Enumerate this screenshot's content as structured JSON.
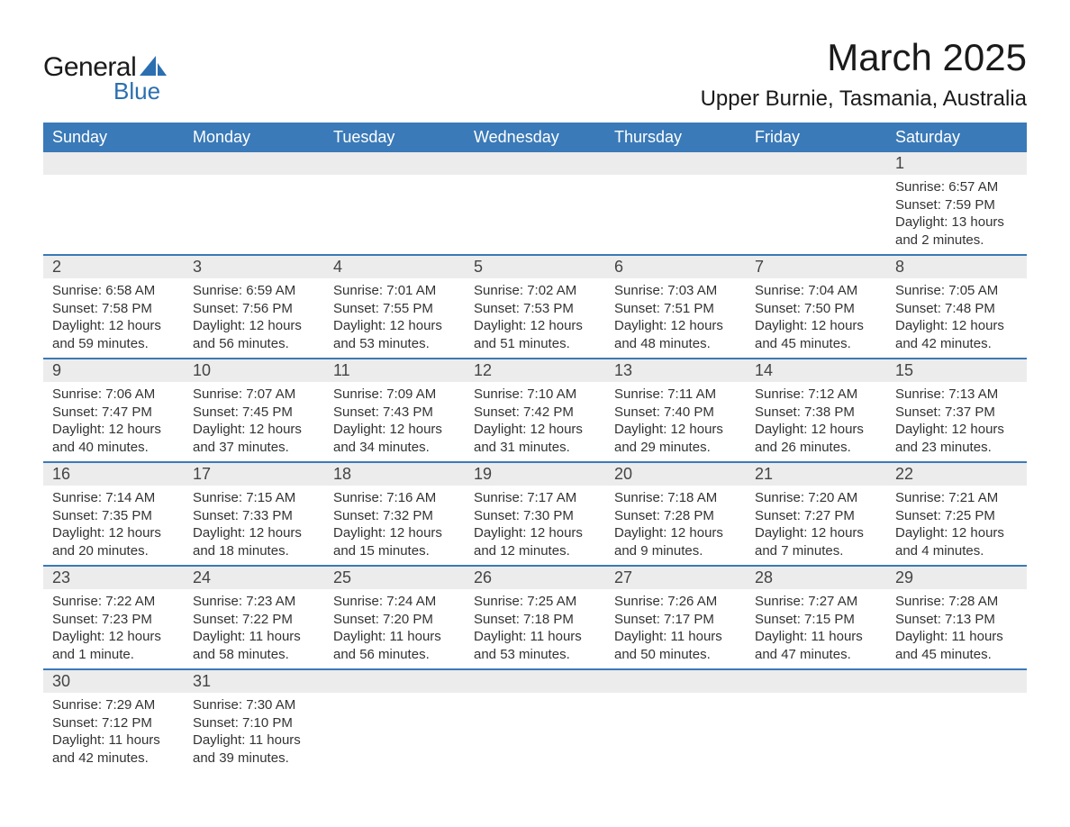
{
  "logo": {
    "word1": "General",
    "word2": "Blue",
    "accent_color": "#2b6fb0",
    "text_color": "#1a1a1a"
  },
  "title": "March 2025",
  "location": "Upper Burnie, Tasmania, Australia",
  "colors": {
    "header_bg": "#3a7ab8",
    "header_text": "#ffffff",
    "daynum_bg": "#ececec",
    "row_border": "#3a7ab8",
    "body_text": "#333333",
    "page_bg": "#ffffff"
  },
  "fonts": {
    "title_size_pt": 32,
    "location_size_pt": 18,
    "header_size_pt": 14,
    "daynum_size_pt": 14,
    "cell_size_pt": 11
  },
  "layout": {
    "columns": 7,
    "weeks": 6,
    "first_day_column_index": 6
  },
  "day_headers": [
    "Sunday",
    "Monday",
    "Tuesday",
    "Wednesday",
    "Thursday",
    "Friday",
    "Saturday"
  ],
  "days": [
    {
      "n": "1",
      "sr": "6:57 AM",
      "ss": "7:59 PM",
      "dl": "13 hours and 2 minutes."
    },
    {
      "n": "2",
      "sr": "6:58 AM",
      "ss": "7:58 PM",
      "dl": "12 hours and 59 minutes."
    },
    {
      "n": "3",
      "sr": "6:59 AM",
      "ss": "7:56 PM",
      "dl": "12 hours and 56 minutes."
    },
    {
      "n": "4",
      "sr": "7:01 AM",
      "ss": "7:55 PM",
      "dl": "12 hours and 53 minutes."
    },
    {
      "n": "5",
      "sr": "7:02 AM",
      "ss": "7:53 PM",
      "dl": "12 hours and 51 minutes."
    },
    {
      "n": "6",
      "sr": "7:03 AM",
      "ss": "7:51 PM",
      "dl": "12 hours and 48 minutes."
    },
    {
      "n": "7",
      "sr": "7:04 AM",
      "ss": "7:50 PM",
      "dl": "12 hours and 45 minutes."
    },
    {
      "n": "8",
      "sr": "7:05 AM",
      "ss": "7:48 PM",
      "dl": "12 hours and 42 minutes."
    },
    {
      "n": "9",
      "sr": "7:06 AM",
      "ss": "7:47 PM",
      "dl": "12 hours and 40 minutes."
    },
    {
      "n": "10",
      "sr": "7:07 AM",
      "ss": "7:45 PM",
      "dl": "12 hours and 37 minutes."
    },
    {
      "n": "11",
      "sr": "7:09 AM",
      "ss": "7:43 PM",
      "dl": "12 hours and 34 minutes."
    },
    {
      "n": "12",
      "sr": "7:10 AM",
      "ss": "7:42 PM",
      "dl": "12 hours and 31 minutes."
    },
    {
      "n": "13",
      "sr": "7:11 AM",
      "ss": "7:40 PM",
      "dl": "12 hours and 29 minutes."
    },
    {
      "n": "14",
      "sr": "7:12 AM",
      "ss": "7:38 PM",
      "dl": "12 hours and 26 minutes."
    },
    {
      "n": "15",
      "sr": "7:13 AM",
      "ss": "7:37 PM",
      "dl": "12 hours and 23 minutes."
    },
    {
      "n": "16",
      "sr": "7:14 AM",
      "ss": "7:35 PM",
      "dl": "12 hours and 20 minutes."
    },
    {
      "n": "17",
      "sr": "7:15 AM",
      "ss": "7:33 PM",
      "dl": "12 hours and 18 minutes."
    },
    {
      "n": "18",
      "sr": "7:16 AM",
      "ss": "7:32 PM",
      "dl": "12 hours and 15 minutes."
    },
    {
      "n": "19",
      "sr": "7:17 AM",
      "ss": "7:30 PM",
      "dl": "12 hours and 12 minutes."
    },
    {
      "n": "20",
      "sr": "7:18 AM",
      "ss": "7:28 PM",
      "dl": "12 hours and 9 minutes."
    },
    {
      "n": "21",
      "sr": "7:20 AM",
      "ss": "7:27 PM",
      "dl": "12 hours and 7 minutes."
    },
    {
      "n": "22",
      "sr": "7:21 AM",
      "ss": "7:25 PM",
      "dl": "12 hours and 4 minutes."
    },
    {
      "n": "23",
      "sr": "7:22 AM",
      "ss": "7:23 PM",
      "dl": "12 hours and 1 minute."
    },
    {
      "n": "24",
      "sr": "7:23 AM",
      "ss": "7:22 PM",
      "dl": "11 hours and 58 minutes."
    },
    {
      "n": "25",
      "sr": "7:24 AM",
      "ss": "7:20 PM",
      "dl": "11 hours and 56 minutes."
    },
    {
      "n": "26",
      "sr": "7:25 AM",
      "ss": "7:18 PM",
      "dl": "11 hours and 53 minutes."
    },
    {
      "n": "27",
      "sr": "7:26 AM",
      "ss": "7:17 PM",
      "dl": "11 hours and 50 minutes."
    },
    {
      "n": "28",
      "sr": "7:27 AM",
      "ss": "7:15 PM",
      "dl": "11 hours and 47 minutes."
    },
    {
      "n": "29",
      "sr": "7:28 AM",
      "ss": "7:13 PM",
      "dl": "11 hours and 45 minutes."
    },
    {
      "n": "30",
      "sr": "7:29 AM",
      "ss": "7:12 PM",
      "dl": "11 hours and 42 minutes."
    },
    {
      "n": "31",
      "sr": "7:30 AM",
      "ss": "7:10 PM",
      "dl": "11 hours and 39 minutes."
    }
  ],
  "labels": {
    "sunrise": "Sunrise: ",
    "sunset": "Sunset: ",
    "daylight": "Daylight: "
  }
}
